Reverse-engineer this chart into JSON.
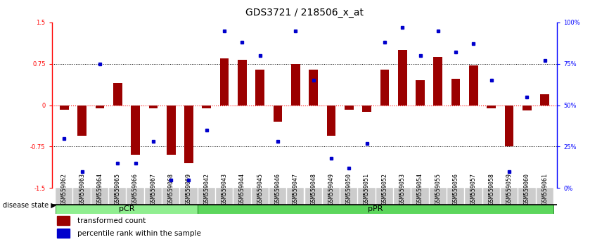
{
  "title": "GDS3721 / 218506_x_at",
  "samples": [
    "GSM559062",
    "GSM559063",
    "GSM559064",
    "GSM559065",
    "GSM559066",
    "GSM559067",
    "GSM559068",
    "GSM559069",
    "GSM559042",
    "GSM559043",
    "GSM559044",
    "GSM559045",
    "GSM559046",
    "GSM559047",
    "GSM559048",
    "GSM559049",
    "GSM559050",
    "GSM559051",
    "GSM559052",
    "GSM559053",
    "GSM559054",
    "GSM559055",
    "GSM559056",
    "GSM559057",
    "GSM559058",
    "GSM559059",
    "GSM559060",
    "GSM559061"
  ],
  "transformed_count": [
    -0.08,
    -0.55,
    -0.05,
    0.4,
    -0.9,
    -0.05,
    -0.9,
    -1.05,
    -0.05,
    0.85,
    0.82,
    0.65,
    -0.3,
    0.75,
    0.65,
    -0.55,
    -0.08,
    -0.12,
    0.65,
    1.0,
    0.45,
    0.87,
    0.48,
    0.72,
    -0.05,
    -0.75,
    -0.1,
    0.2
  ],
  "percentile_rank": [
    30,
    10,
    75,
    15,
    15,
    28,
    5,
    5,
    35,
    95,
    88,
    80,
    28,
    95,
    65,
    18,
    12,
    27,
    88,
    97,
    80,
    95,
    82,
    87,
    65,
    10,
    55,
    77
  ],
  "pCR_count": 8,
  "pPR_count": 20,
  "bar_color": "#9B0000",
  "dot_color": "#0000CC",
  "ylim_left": [
    -1.5,
    1.5
  ],
  "ylim_right": [
    0,
    100
  ],
  "yticks_left": [
    -1.5,
    -0.75,
    0,
    0.75,
    1.5
  ],
  "yticks_right": [
    0,
    25,
    50,
    75,
    100
  ],
  "ytick_labels_right": [
    "0%",
    "25%",
    "50%",
    "75%",
    "100%"
  ],
  "hlines_dotted": [
    0.75,
    -0.75
  ],
  "hline_red": 0,
  "legend_bar_label": "transformed count",
  "legend_dot_label": "percentile rank within the sample",
  "disease_state_label": "disease state",
  "pCR_label": "pCR",
  "pPR_label": "pPR",
  "pCR_color": "#90EE90",
  "pPR_color": "#5CD65C",
  "sample_box_color": "#CCCCCC",
  "title_fontsize": 10,
  "tick_fontsize": 6,
  "label_fontsize": 7.5
}
